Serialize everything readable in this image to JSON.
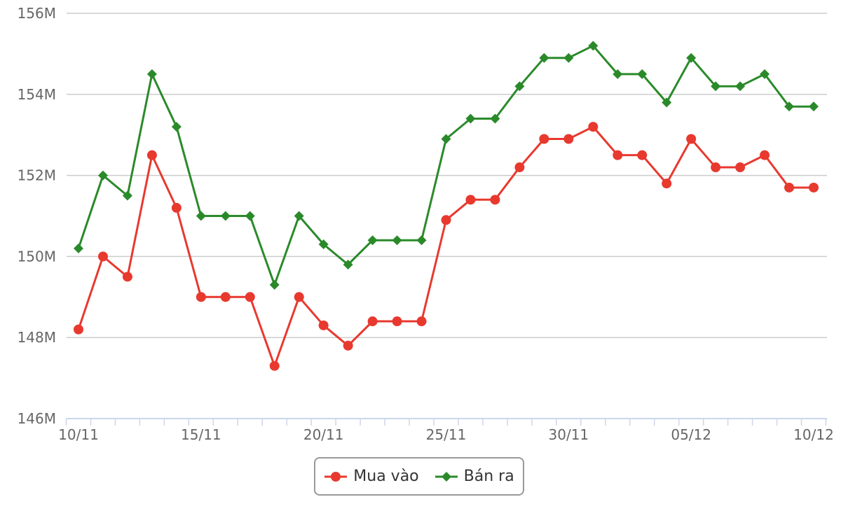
{
  "chart_data": {
    "type": "line",
    "title": "",
    "xlabel": "",
    "ylabel": "",
    "ylim": [
      146,
      156
    ],
    "yticks": [
      146,
      148,
      150,
      152,
      154,
      156
    ],
    "ytick_labels": [
      "146M",
      "148M",
      "150M",
      "152M",
      "154M",
      "156M"
    ],
    "x": [
      "10/11",
      "11/11",
      "12/11",
      "13/11",
      "14/11",
      "15/11",
      "16/11",
      "17/11",
      "18/11",
      "19/11",
      "20/11",
      "21/11",
      "22/11",
      "23/11",
      "24/11",
      "25/11",
      "26/11",
      "27/11",
      "28/11",
      "29/11",
      "30/11",
      "01/12",
      "02/12",
      "03/12",
      "04/12",
      "05/12",
      "06/12",
      "07/12",
      "08/12",
      "09/12",
      "10/12"
    ],
    "xtick_labels": [
      "10/11",
      "15/11",
      "20/11",
      "25/11",
      "30/11",
      "05/12",
      "10/12"
    ],
    "grid": true,
    "legend_position": "bottom-center",
    "series": [
      {
        "name": "Mua vào",
        "color": "#e8392f",
        "marker": "circle",
        "values": [
          148.2,
          150.0,
          149.5,
          152.5,
          151.2,
          149.0,
          149.0,
          149.0,
          147.3,
          149.0,
          148.3,
          147.8,
          148.4,
          148.4,
          148.4,
          150.9,
          151.4,
          151.4,
          152.2,
          152.9,
          152.9,
          153.2,
          152.5,
          152.5,
          151.8,
          152.9,
          152.2,
          152.2,
          152.5,
          151.7,
          151.7
        ]
      },
      {
        "name": "Bán ra",
        "color": "#2a8a2a",
        "marker": "diamond",
        "values": [
          150.2,
          152.0,
          151.5,
          154.5,
          153.2,
          151.0,
          151.0,
          151.0,
          149.3,
          151.0,
          150.3,
          149.8,
          150.4,
          150.4,
          150.4,
          152.9,
          153.4,
          153.4,
          154.2,
          154.9,
          154.9,
          155.2,
          154.5,
          154.5,
          153.8,
          154.9,
          154.2,
          154.2,
          154.5,
          153.7,
          153.7
        ]
      }
    ]
  }
}
